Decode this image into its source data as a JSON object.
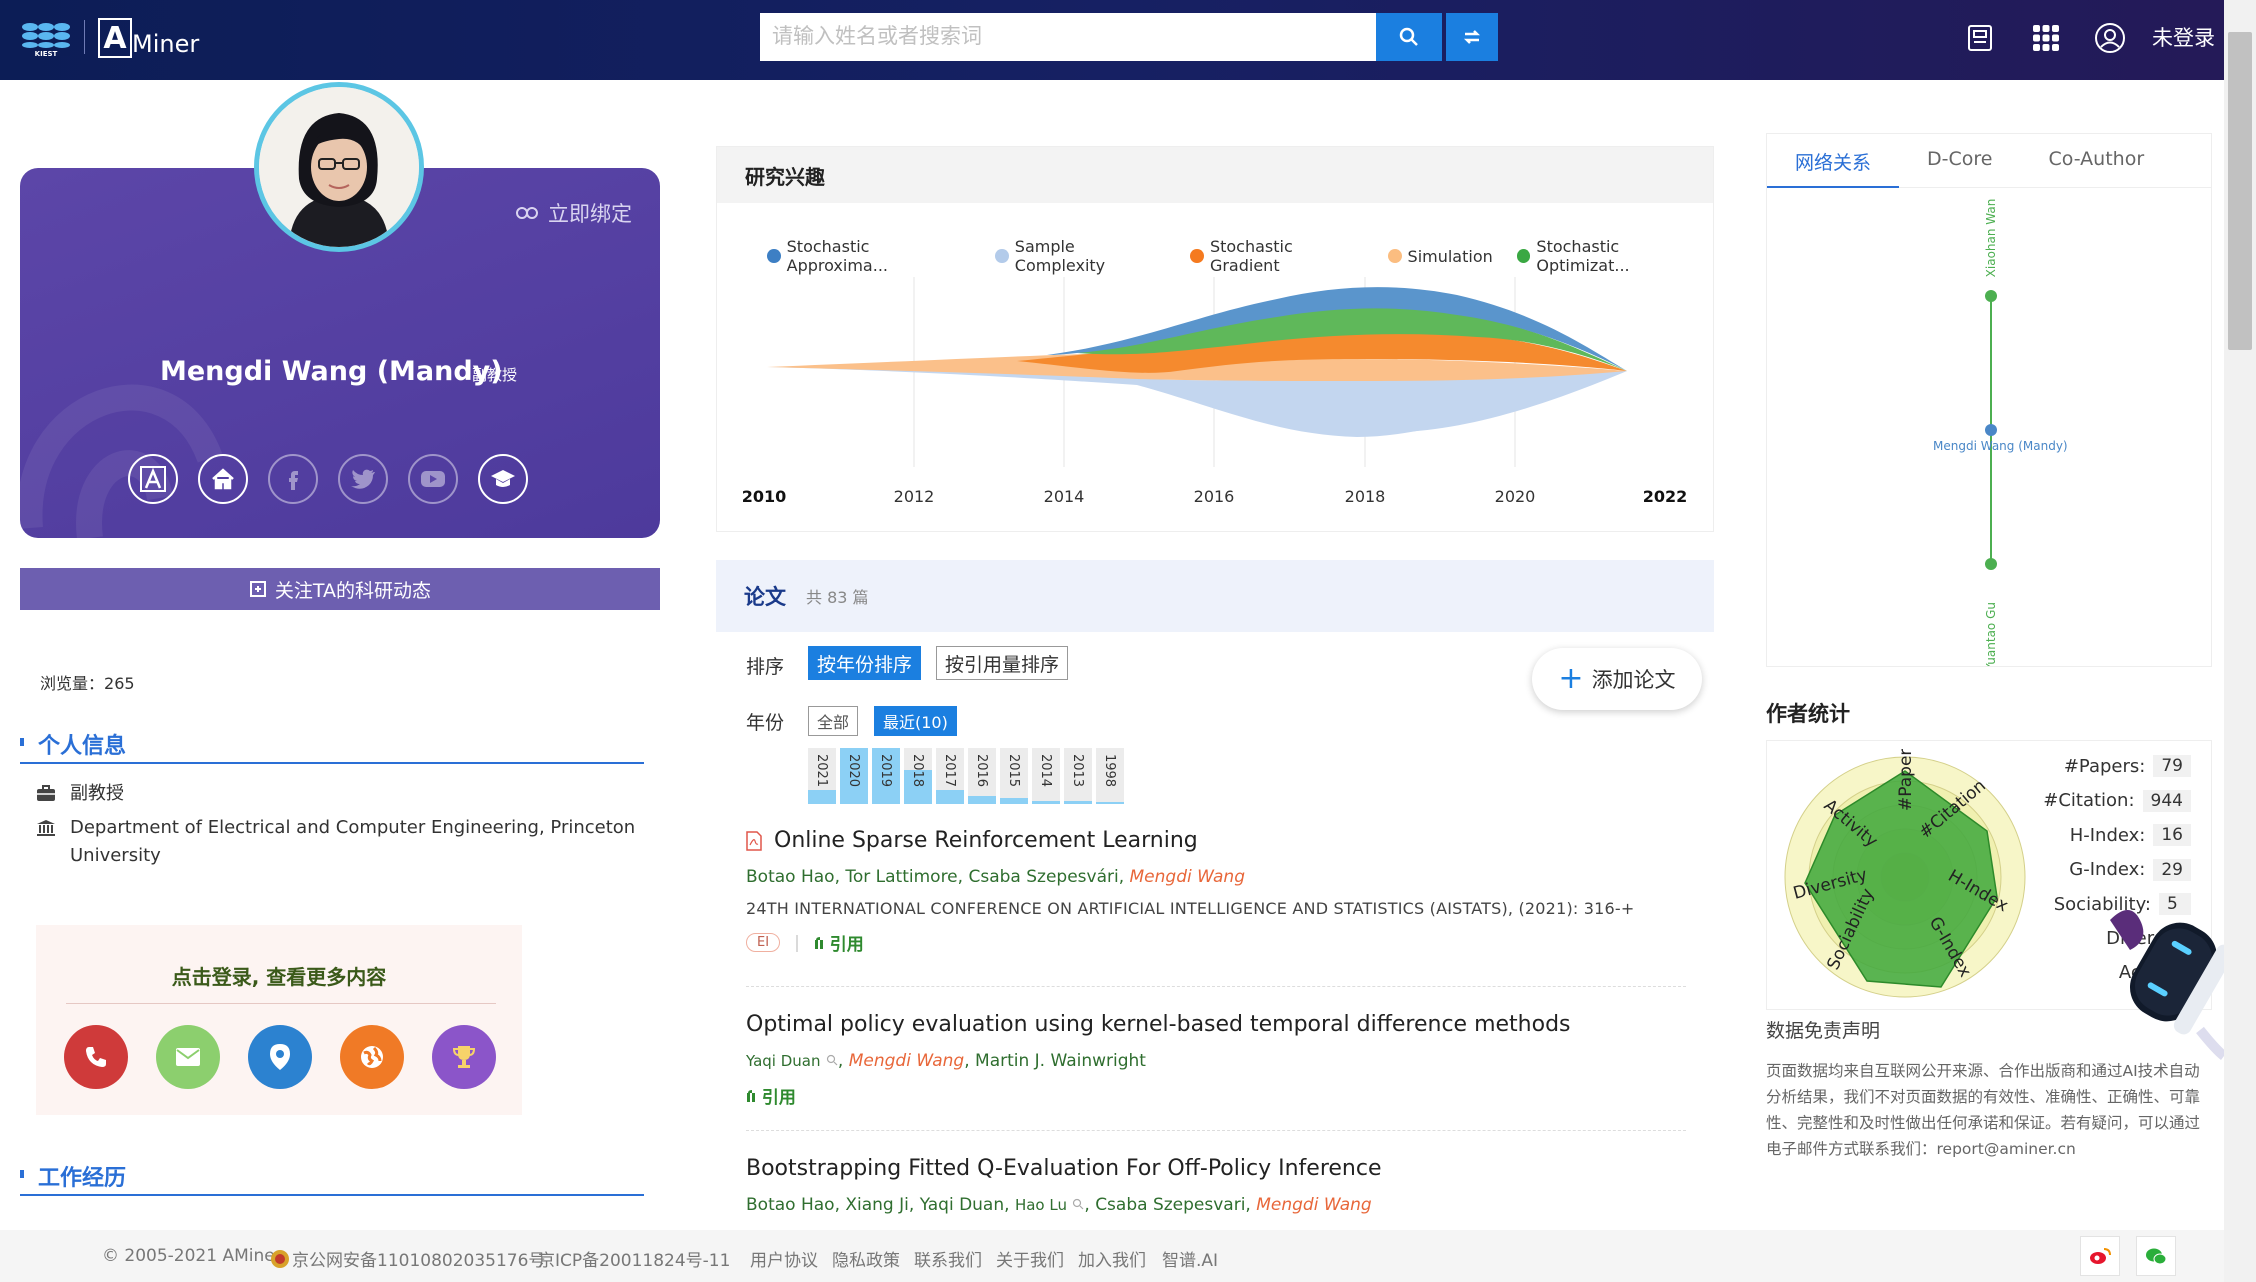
{
  "header": {
    "search_placeholder": "请输入姓名或者搜索词",
    "logo_text": "Miner",
    "login_text": "未登录"
  },
  "profile": {
    "bind_link": "立即绑定",
    "name": "Mengdi Wang (Mandy)",
    "title": "副教授",
    "follow_button": "关注TA的科研动态",
    "views_label": "浏览量：",
    "views_value": "265",
    "personal_info_heading": "个人信息",
    "position": "副教授",
    "affiliation": "Department of Electrical and Computer Engineering, Princeton University",
    "login_prompt": "点击登录, 查看更多内容",
    "work_heading": "工作经历"
  },
  "interest": {
    "heading": "研究兴趣",
    "legend": [
      {
        "label": "Stochastic Approxima...",
        "color": "#3d7fc4"
      },
      {
        "label": "Sample Complexity",
        "color": "#b3cbea"
      },
      {
        "label": "Stochastic Gradient",
        "color": "#f57a1f"
      },
      {
        "label": "Simulation",
        "color": "#fbbd80"
      },
      {
        "label": "Stochastic Optimizat...",
        "color": "#3aa843"
      }
    ],
    "years": [
      "2010",
      "2012",
      "2014",
      "2016",
      "2018",
      "2020",
      "2022"
    ]
  },
  "papers": {
    "heading": "论文",
    "count_text": "共 83 篇",
    "sort_label": "排序",
    "sort_by_year": "按年份排序",
    "sort_by_citation": "按引用量排序",
    "year_label": "年份",
    "year_all": "全部",
    "year_recent": "最近(10)",
    "add_paper": "添加论文",
    "year_bars": [
      {
        "year": "2021",
        "level": 0.25
      },
      {
        "year": "2020",
        "level": 1.0
      },
      {
        "year": "2019",
        "level": 1.0
      },
      {
        "year": "2018",
        "level": 0.6
      },
      {
        "year": "2017",
        "level": 0.25
      },
      {
        "year": "2016",
        "level": 0.15
      },
      {
        "year": "2015",
        "level": 0.1
      },
      {
        "year": "2014",
        "level": 0.06
      },
      {
        "year": "2013",
        "level": 0.06
      },
      {
        "year": "1998",
        "level": 0.03
      }
    ],
    "items": [
      {
        "title": "Online Sparse Reinforcement Learning",
        "authors": [
          "Botao Hao",
          "Tor Lattimore",
          "Csaba Szepesvári"
        ],
        "highlight_author": "Mengdi Wang",
        "venue": "24TH INTERNATIONAL CONFERENCE ON ARTIFICIAL INTELLIGENCE AND STATISTICS (AISTATS), (2021): 316-+",
        "badge": "EI",
        "cite": "引用"
      },
      {
        "title": "Optimal policy evaluation using kernel-based temporal difference methods",
        "author_first": "Yaqi Duan",
        "highlight_author": "Mengdi Wang",
        "author_last": "Martin J. Wainwright",
        "cite": "引用"
      },
      {
        "title": "Bootstrapping Fitted Q-Evaluation For Off-Policy Inference",
        "authors": [
          "Botao Hao",
          "Xiang Ji",
          "Yaqi Duan"
        ],
        "author_small": "Hao Lu",
        "authors_after": "Csaba Szepesvari",
        "highlight_author": "Mengdi Wang"
      }
    ]
  },
  "network": {
    "tabs": [
      "网络关系",
      "D-Core",
      "Co-Author"
    ],
    "nodes": [
      "Xiaohan Wan",
      "Mengdi Wang (Mandy)",
      "Yuantao Gu"
    ]
  },
  "stats": {
    "heading": "作者统计",
    "radar_axes": [
      "#Papers",
      "#Citation",
      "H-Index",
      "G-Index",
      "Sociability",
      "Diversity",
      "Activity"
    ],
    "rows": [
      {
        "label": "#Papers:",
        "value": "79"
      },
      {
        "label": "#Citation:",
        "value": "944"
      },
      {
        "label": "H-Index:",
        "value": "16"
      },
      {
        "label": "G-Index:",
        "value": "29"
      },
      {
        "label": "Sociability:",
        "value": "5"
      },
      {
        "label": "Diversity:",
        "value": ""
      },
      {
        "label": "Activity:",
        "value": ""
      }
    ],
    "disclaimer_title": "数据免责声明",
    "disclaimer_text": "页面数据均来自互联网公开来源、合作出版商和通过AI技术自动分析结果，我们不对页面数据的有效性、准确性、正确性、可靠性、完整性和及时性做出任何承诺和保证。若有疑问，可以通过电子邮件方式联系我们：report@aminer.cn"
  },
  "footer": {
    "copyright": "© 2005-2021 AMiner",
    "police_record": "京公网安备11010802035176号",
    "icp": "京ICP备20011824号-11",
    "links": [
      "用户协议",
      "隐私政策",
      "联系我们",
      "关于我们",
      "加入我们",
      "智谱.AI"
    ]
  },
  "colors": {
    "header_bg": "#0c1d56",
    "accent": "#1b7fe0",
    "card_bg": "#5c46a8",
    "highlight_author": "#e8673a",
    "author_green": "#2f6e2f"
  }
}
